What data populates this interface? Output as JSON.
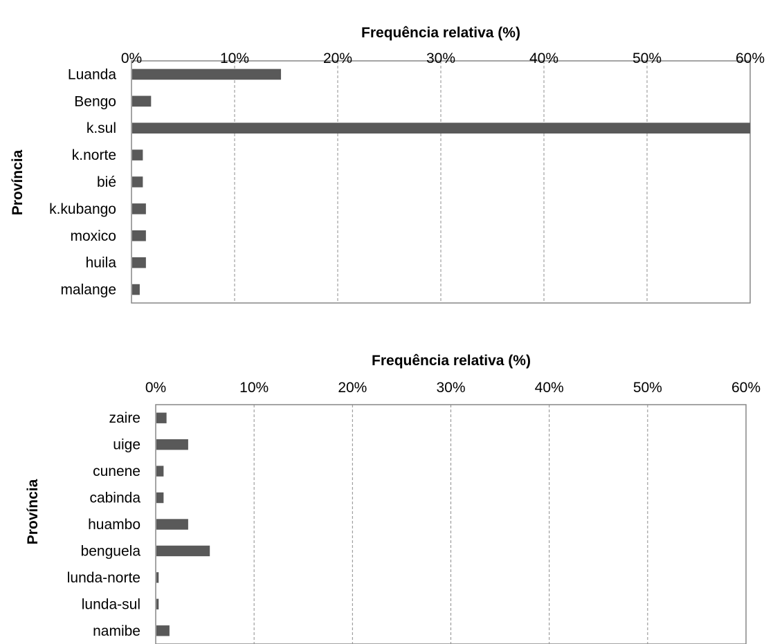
{
  "chart_data": [
    {
      "type": "bar",
      "orientation": "horizontal",
      "title": "",
      "xlabel": "Frequência relativa (%)",
      "ylabel": "Província",
      "xlim": [
        0,
        60
      ],
      "x_tick_labels": [
        "0%",
        "10%",
        "20%",
        "30%",
        "40%",
        "50%",
        "60%"
      ],
      "x_axis_position": "top",
      "grid": "vertical dashed",
      "bar_color": "#595959",
      "categories": [
        "Luanda",
        "Bengo",
        "k.sul",
        "k.norte",
        "bié",
        "k.kubango",
        "moxico",
        "huila",
        "malange"
      ],
      "values": [
        14.5,
        1.9,
        60,
        1.1,
        1.1,
        1.4,
        1.4,
        1.4,
        0.8
      ]
    },
    {
      "type": "bar",
      "orientation": "horizontal",
      "title": "",
      "xlabel": "Frequência relativa (%)",
      "ylabel": "Província",
      "xlim": [
        0,
        60
      ],
      "x_tick_labels": [
        "0%",
        "10%",
        "20%",
        "30%",
        "40%",
        "50%",
        "60%"
      ],
      "x_axis_position": "top",
      "grid": "vertical dashed",
      "bar_color": "#595959",
      "categories": [
        "zaire",
        "uige",
        "cunene",
        "cabinda",
        "huambo",
        "benguela",
        "lunda-norte",
        "lunda-sul",
        "namibe"
      ],
      "values": [
        1.1,
        3.3,
        0.8,
        0.8,
        3.3,
        5.5,
        0.3,
        0.3,
        1.4
      ]
    }
  ]
}
